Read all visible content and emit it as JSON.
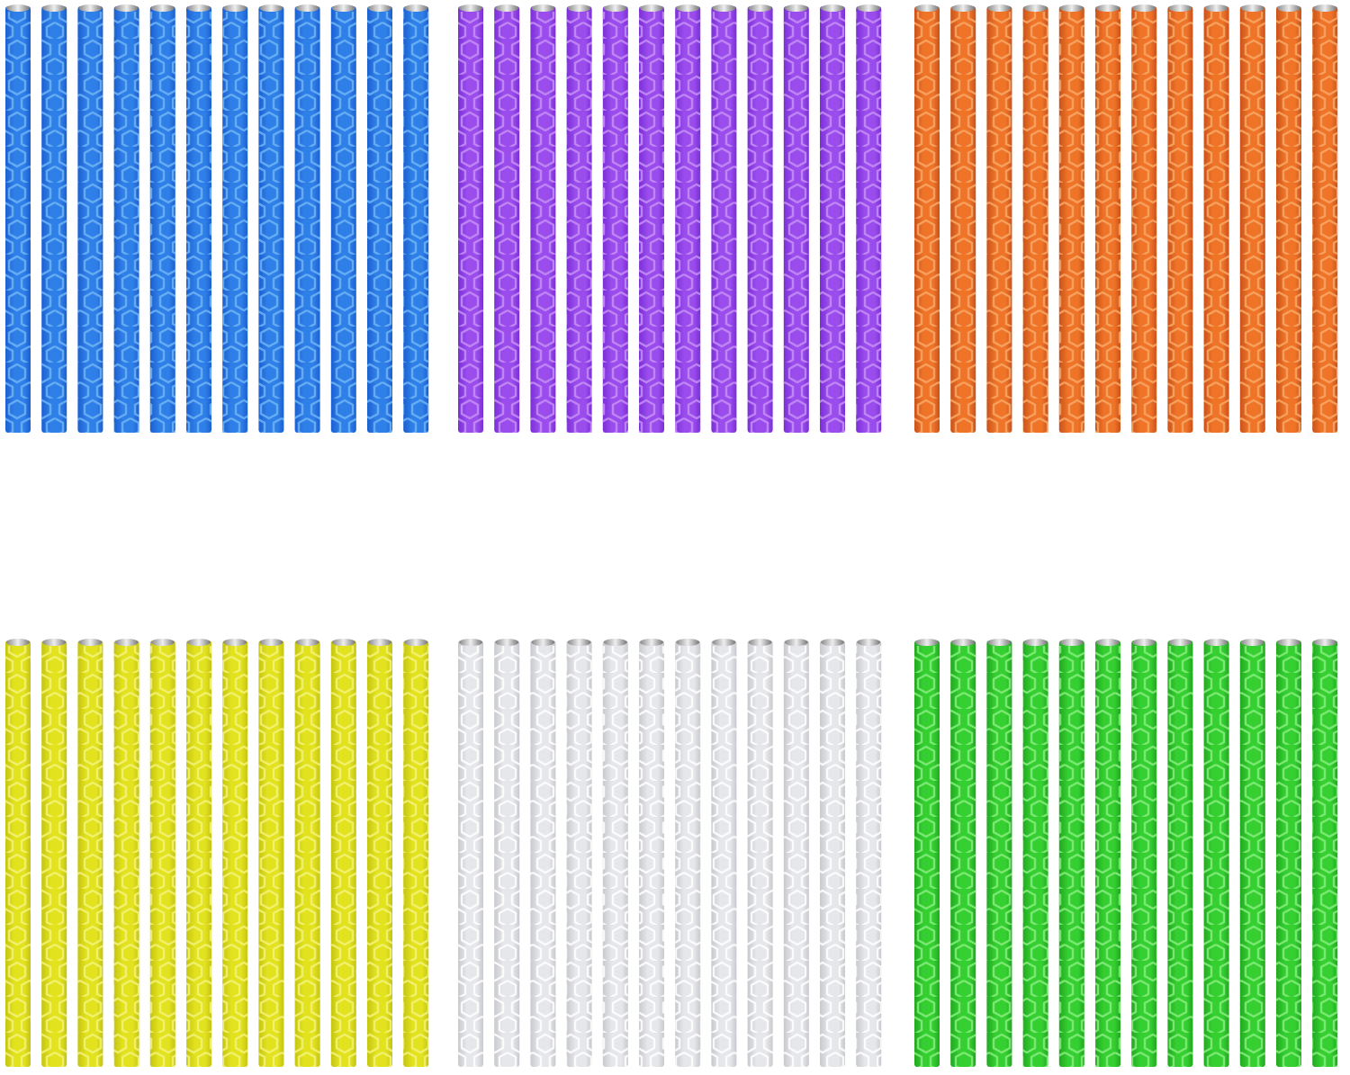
{
  "product_photo": {
    "tubes_per_group": 12,
    "groups": [
      {
        "name": "blue",
        "color": "#2f7fe8",
        "hex_color": "#6fb4f5",
        "dark": "#1c5fd0"
      },
      {
        "name": "purple",
        "color": "#9a4cec",
        "hex_color": "#c58ff5",
        "dark": "#7a2fd6"
      },
      {
        "name": "orange",
        "color": "#ef7428",
        "hex_color": "#f8a868",
        "dark": "#c9521a"
      },
      {
        "name": "yellow",
        "color": "#e2e21f",
        "hex_color": "#f4f47a",
        "dark": "#c4c414"
      },
      {
        "name": "clear",
        "color": "#e6e7ea",
        "hex_color": "#ffffff",
        "dark": "#c8c9ce"
      },
      {
        "name": "green",
        "color": "#35cf32",
        "hex_color": "#86ee7e",
        "dark": "#22a820"
      }
    ],
    "icons": {
      "tube": "reflective-spoke-tube-icon",
      "cap": "metal-cap-icon"
    }
  }
}
